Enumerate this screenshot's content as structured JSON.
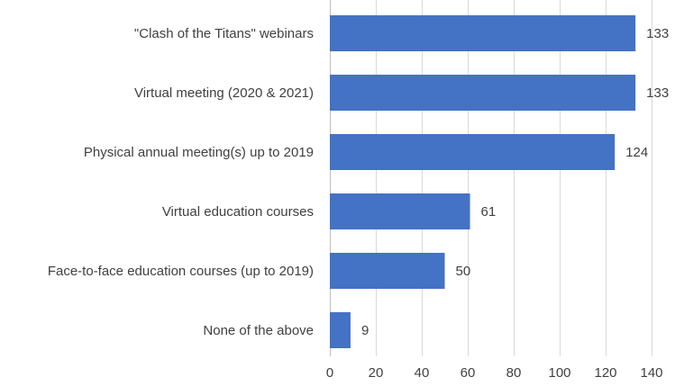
{
  "chart_data": {
    "type": "bar",
    "orientation": "horizontal",
    "title": "",
    "xlabel": "",
    "ylabel": "",
    "categories": [
      "\"Clash of the Titans\" webinars",
      "Virtual meeting (2020 & 2021)",
      "Physical annual meeting(s) up to 2019",
      "Virtual education courses",
      "Face-to-face education courses (up to 2019)",
      "None of the above"
    ],
    "values": [
      133,
      133,
      124,
      61,
      50,
      9
    ],
    "xlim": [
      0,
      140
    ],
    "xticks": [
      0,
      20,
      40,
      60,
      80,
      100,
      120,
      140
    ],
    "grid": "vertical",
    "bar_color": "#4472c4",
    "legend": "none"
  }
}
